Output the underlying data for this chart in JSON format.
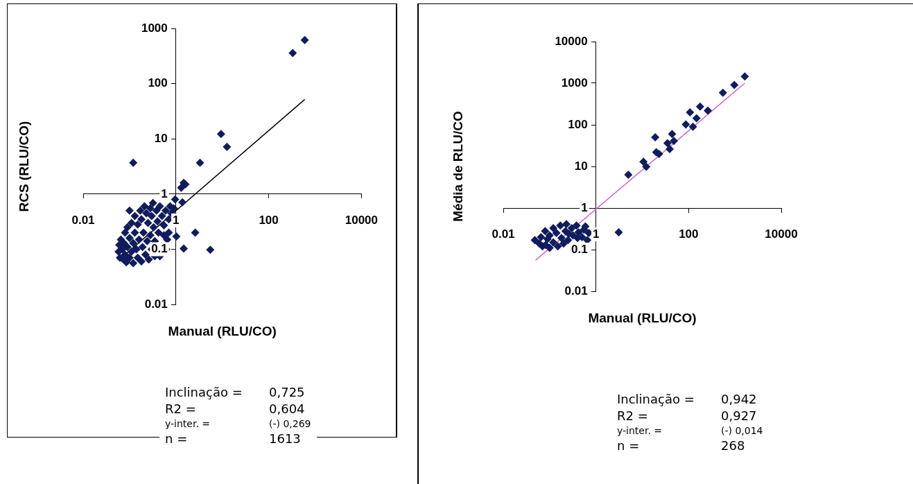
{
  "chart_data": [
    {
      "type": "scatter",
      "xlabel": "Manual (RLU/CO)",
      "ylabel": "RCS (RLU/CO)",
      "log": "xy",
      "xlim": [
        0.01,
        10000
      ],
      "ylim": [
        0.01,
        1000
      ],
      "xticks": [
        0.01,
        1,
        100,
        10000
      ],
      "yticks": [
        0.01,
        0.1,
        1,
        10,
        100,
        1000
      ],
      "series": [
        {
          "type": "scatter",
          "marker": "diamond",
          "color": "#101c5c",
          "x": [
            600,
            330,
            9.4,
            12.6,
            3.3,
            0.12,
            1.47,
            1.3,
            1.6,
            1.38,
            0.96,
            2.6,
            1.47,
            5.5,
            1.02,
            0.058,
            0.06,
            0.062,
            0.065,
            0.07,
            0.07,
            0.075,
            0.08,
            0.08,
            0.085,
            0.09,
            0.09,
            0.1,
            0.1,
            0.1,
            0.11,
            0.11,
            0.12,
            0.12,
            0.13,
            0.13,
            0.14,
            0.15,
            0.15,
            0.16,
            0.17,
            0.18,
            0.18,
            0.19,
            0.2,
            0.21,
            0.22,
            0.23,
            0.24,
            0.25,
            0.26,
            0.28,
            0.28,
            0.3,
            0.3,
            0.32,
            0.33,
            0.35,
            0.35,
            0.38,
            0.4,
            0.42,
            0.45,
            0.45,
            0.5,
            0.55,
            0.55,
            0.6,
            0.62,
            0.7,
            0.7,
            0.75,
            0.8,
            0.9,
            0.65
          ],
          "values": [
            620,
            360,
            12.3,
            7.2,
            3.7,
            3.7,
            1.6,
            1.3,
            1.5,
            0.71,
            0.8,
            0.2,
            0.103,
            0.098,
            0.17,
            0.09,
            0.12,
            0.07,
            0.15,
            0.068,
            0.1,
            0.13,
            0.2,
            0.08,
            0.058,
            0.11,
            0.25,
            0.5,
            0.16,
            0.07,
            0.3,
            0.09,
            0.13,
            0.056,
            0.2,
            0.4,
            0.1,
            0.07,
            0.28,
            0.15,
            0.5,
            0.06,
            0.35,
            0.11,
            0.2,
            0.6,
            0.08,
            0.45,
            0.14,
            0.3,
            0.065,
            0.55,
            0.18,
            0.1,
            0.4,
            0.69,
            0.25,
            0.075,
            0.14,
            0.5,
            0.32,
            0.2,
            0.6,
            0.075,
            0.4,
            0.27,
            0.18,
            0.5,
            0.1,
            0.35,
            0.2,
            0.6,
            0.45,
            0.55,
            0.15
          ]
        },
        {
          "type": "line",
          "color": "#000000",
          "x": [
            0.058,
            600
          ],
          "values": [
            0.063,
            52
          ]
        }
      ],
      "annotations": [
        "Inclinação =",
        "0,725",
        "R2 =",
        "0,604",
        "y-inter. =",
        "(-) 0,269",
        "n =",
        "1613"
      ]
    },
    {
      "type": "scatter",
      "xlabel": "Manual (RLU/CO)",
      "ylabel": "Média de RLU/CO",
      "log": "xy",
      "xlim": [
        0.01,
        10000
      ],
      "ylim": [
        0.01,
        10000
      ],
      "xticks": [
        0.01,
        1,
        100,
        10000
      ],
      "yticks": [
        0.01,
        0.1,
        1,
        10,
        100,
        1000,
        10000
      ],
      "series": [
        {
          "type": "scatter",
          "marker": "diamond",
          "color": "#101c5c",
          "x": [
            1630,
            970,
            550,
            260,
            177,
            148,
            107,
            124,
            87,
            44,
            48,
            35,
            39,
            19,
            20,
            23,
            10.6,
            12.2,
            5.0,
            3.1,
            0.048,
            0.06,
            0.065,
            0.07,
            0.08,
            0.082,
            0.09,
            0.1,
            0.1,
            0.12,
            0.12,
            0.14,
            0.15,
            0.17,
            0.18,
            0.2,
            0.22,
            0.23,
            0.25,
            0.3,
            0.32,
            0.38,
            0.42,
            0.5,
            0.55,
            0.59,
            0.65,
            0.7,
            0.4,
            0.26
          ],
          "values": [
            1450,
            910,
            590,
            220,
            275,
            144,
            200,
            90,
            102,
            60,
            41,
            36,
            26,
            50,
            22,
            20,
            13,
            9.8,
            6.3,
            0.26,
            0.17,
            0.14,
            0.2,
            0.12,
            0.28,
            0.13,
            0.18,
            0.22,
            0.11,
            0.33,
            0.15,
            0.25,
            0.12,
            0.38,
            0.19,
            0.14,
            0.28,
            0.41,
            0.17,
            0.33,
            0.22,
            0.38,
            0.26,
            0.2,
            0.3,
            0.36,
            0.17,
            0.25,
            0.19,
            0.24
          ]
        },
        {
          "type": "line",
          "color": "#cc66cc",
          "x": [
            0.05,
            1630
          ],
          "values": [
            0.056,
            1000
          ]
        }
      ],
      "annotations": [
        "Inclinação =",
        "0,942",
        "R2 =",
        "0,927",
        "y-inter. =",
        "(-) 0,014",
        "n =",
        "268"
      ]
    }
  ]
}
